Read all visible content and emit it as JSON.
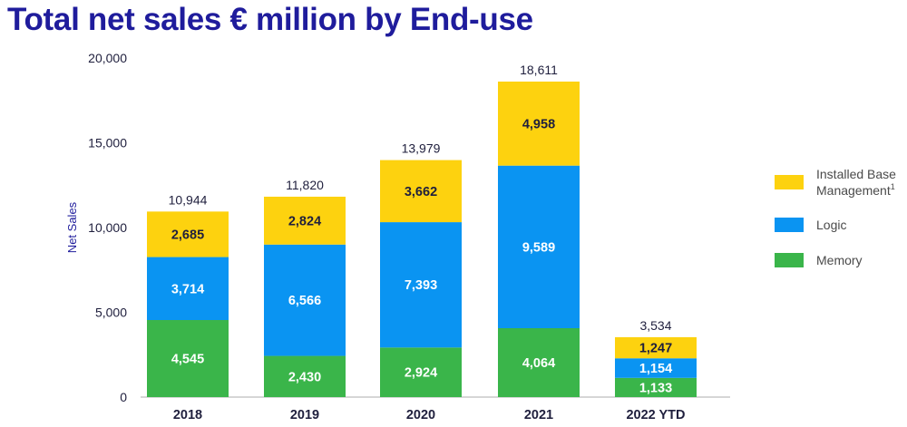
{
  "chart_data": {
    "type": "bar",
    "stacked": true,
    "title": "Total net sales € million by End-use",
    "xlabel": "",
    "ylabel": "Net Sales",
    "ylim": [
      0,
      20000
    ],
    "yticks": [
      "0",
      "5,000",
      "10,000",
      "15,000",
      "20,000"
    ],
    "categories": [
      "2018",
      "2019",
      "2020",
      "2021",
      "2022 YTD"
    ],
    "series": [
      {
        "name": "Memory",
        "color": "#3ab54a",
        "label_color": "#ffffff",
        "values": [
          4545,
          2430,
          2924,
          4064,
          1133
        ],
        "labels": [
          "4,545",
          "2,430",
          "2,924",
          "4,064",
          "1,133"
        ]
      },
      {
        "name": "Logic",
        "color": "#0a94f2",
        "label_color": "#ffffff",
        "values": [
          3714,
          6566,
          7393,
          9589,
          1154
        ],
        "labels": [
          "3,714",
          "6,566",
          "7,393",
          "9,589",
          "1,154"
        ]
      },
      {
        "name": "Installed Base Management",
        "color": "#fdd20f",
        "label_color": "#1f1f3d",
        "values": [
          2685,
          2824,
          3662,
          4958,
          1247
        ],
        "labels": [
          "2,685",
          "2,824",
          "3,662",
          "4,958",
          "1,247"
        ]
      }
    ],
    "totals": [
      10944,
      11820,
      13979,
      18611,
      3534
    ],
    "total_labels": [
      "10,944",
      "11,820",
      "13,979",
      "18,611",
      "3,534"
    ],
    "legend": [
      {
        "lines": [
          "Installed Base",
          "Management"
        ],
        "superscript": "1",
        "color": "#fdd20f"
      },
      {
        "lines": [
          "Logic"
        ],
        "color": "#0a94f2"
      },
      {
        "lines": [
          "Memory"
        ],
        "color": "#3ab54a"
      }
    ],
    "legend_position": "right"
  }
}
